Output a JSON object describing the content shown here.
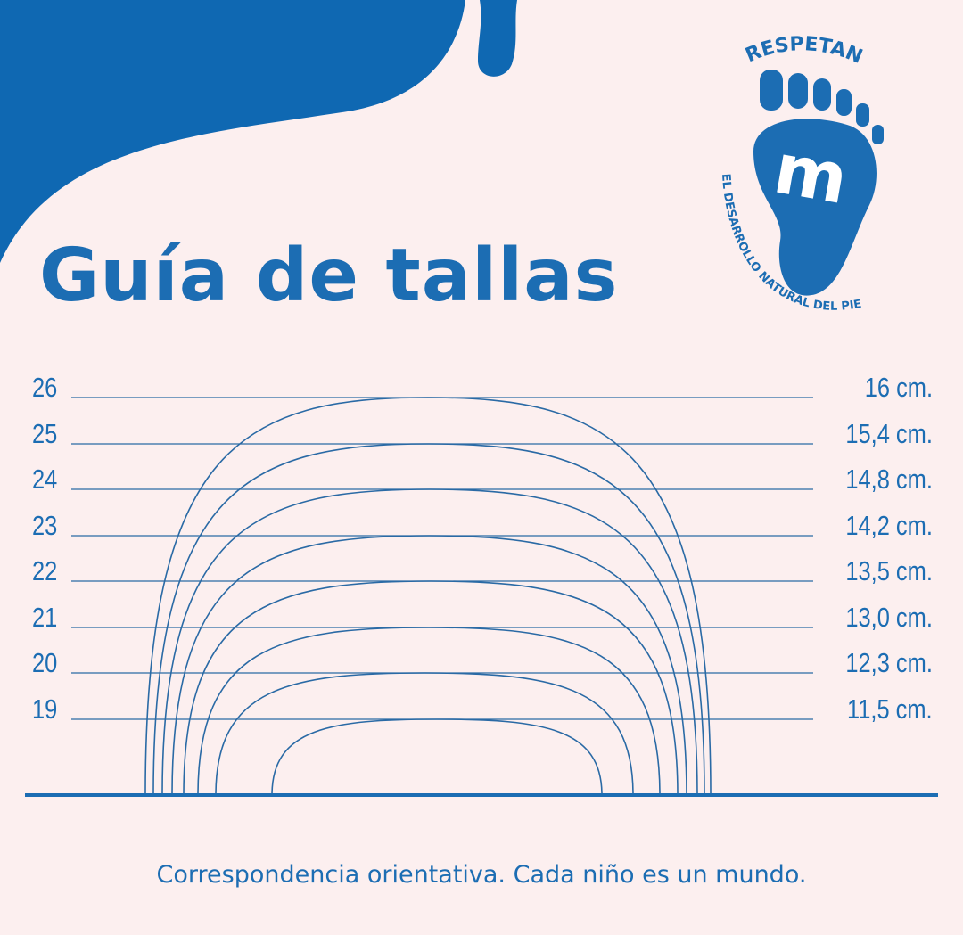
{
  "title": "Guía de tallas",
  "logo": {
    "top_text": "RESPETAN",
    "bottom_text": "EL DESARROLLO NATURAL DEL PIE",
    "letter": "m"
  },
  "sizes": [
    {
      "size": "26",
      "length": "16 cm."
    },
    {
      "size": "25",
      "length": "15,4 cm."
    },
    {
      "size": "24",
      "length": "14,8 cm."
    },
    {
      "size": "23",
      "length": "14,2 cm."
    },
    {
      "size": "22",
      "length": "13,5 cm."
    },
    {
      "size": "21",
      "length": "13,0 cm."
    },
    {
      "size": "20",
      "length": "12,3 cm."
    },
    {
      "size": "19",
      "length": "11,5 cm."
    }
  ],
  "footer": "Correspondencia orientativa. Cada niño es un mundo.",
  "colors": {
    "brand_blue": "#1c6db3",
    "background": "#fcefef"
  }
}
